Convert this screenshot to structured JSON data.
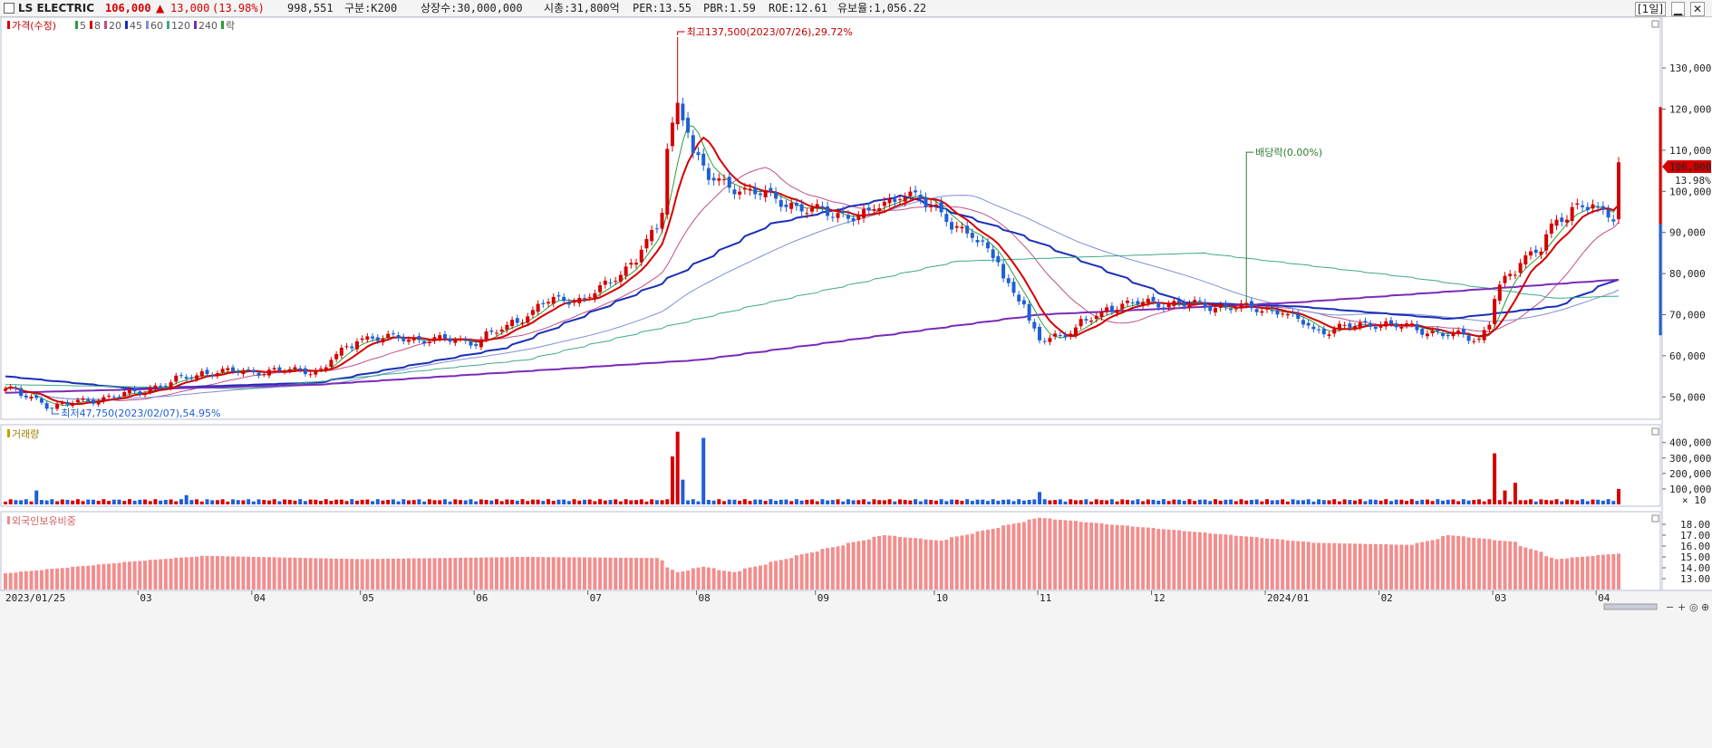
{
  "header": {
    "name": "LS ELECTRIC",
    "price": "106,000",
    "change_arrow": "▲",
    "change": "13,000",
    "change_pct": "(13.98%)",
    "volume": "998,551",
    "category": "구분:K200",
    "shares": "상장수:30,000,000",
    "market_cap": "시총:31,800억",
    "per": "PER:13.55",
    "pbr": "PBR:1.59",
    "roe": "ROE:12.61",
    "float_ratio": "유보율:1,056.22",
    "period_button": "[1일]"
  },
  "colors": {
    "up": "#d40000",
    "down": "#1f5fd4",
    "ma5": "#2e9e3a",
    "ma8": "#d40000",
    "ma20": "#c0508a",
    "ma45": "#1a2fb8",
    "ma60": "#7f8fd8",
    "ma120": "#3fa88a",
    "ma240": "#7a2bb8",
    "foreign": "#f28e8e"
  },
  "price_legend": [
    {
      "label": "가격(수정)",
      "color": "#d40000"
    },
    {
      "label": "5",
      "color": "#2e9e3a"
    },
    {
      "label": "8",
      "color": "#d40000"
    },
    {
      "label": "20",
      "color": "#c0508a"
    },
    {
      "label": "45",
      "color": "#1a2fb8"
    },
    {
      "label": "60",
      "color": "#7f8fd8"
    },
    {
      "label": "120",
      "color": "#3fa88a"
    },
    {
      "label": "240",
      "color": "#7a2bb8"
    },
    {
      "label": "락",
      "color": "#2e9e3a"
    }
  ],
  "annotations": {
    "high": "최고137,500(2023/07/26),29.72%",
    "low": "최저47,750(2023/02/07),54.95%",
    "dividend": "배당락(0.00%)"
  },
  "price_axis": {
    "ticks": [
      "130,000",
      "120,000",
      "110,000",
      "100,000",
      "90,000",
      "80,000",
      "70,000",
      "60,000",
      "50,000"
    ],
    "current_label": "106,000",
    "current_pct": "13.98%"
  },
  "volume_panel": {
    "title": "거래량",
    "ticks": [
      "400,000",
      "300,000",
      "200,000",
      "100,000"
    ],
    "unit": "× 10"
  },
  "foreign_panel": {
    "title": "외국인보유비중",
    "ticks": [
      "18.00",
      "17.00",
      "16.00",
      "15.00",
      "14.00",
      "13.00"
    ]
  },
  "x_axis": {
    "labels": [
      "2023/01/25",
      "03",
      "04",
      "05",
      "06",
      "07",
      "08",
      "09",
      "10",
      "11",
      "12",
      "2024/01",
      "02",
      "03",
      "04"
    ]
  },
  "chart_data": {
    "type": "candlestick",
    "x_start": "2023/01/25",
    "x_end": "2024/04/05",
    "y_range_price": [
      45000,
      137500
    ],
    "price_anchors": [
      {
        "date": "2023/01/25",
        "value": 52000
      },
      {
        "date": "2023/02/07",
        "value": 47750
      },
      {
        "date": "2023/03/01",
        "value": 51000
      },
      {
        "date": "2023/03/20",
        "value": 56000
      },
      {
        "date": "2023/04/20",
        "value": 56500
      },
      {
        "date": "2023/05/01",
        "value": 64500
      },
      {
        "date": "2023/05/20",
        "value": 64000
      },
      {
        "date": "2023/06/01",
        "value": 63500
      },
      {
        "date": "2023/06/10",
        "value": 67000
      },
      {
        "date": "2023/06/20",
        "value": 73000
      },
      {
        "date": "2023/07/01",
        "value": 74000
      },
      {
        "date": "2023/07/10",
        "value": 79000
      },
      {
        "date": "2023/07/15",
        "value": 85000
      },
      {
        "date": "2023/07/20",
        "value": 90000
      },
      {
        "date": "2023/07/26",
        "value": 121000
      },
      {
        "date": "2023/08/03",
        "value": 103000
      },
      {
        "date": "2023/08/15",
        "value": 100000
      },
      {
        "date": "2023/09/01",
        "value": 95000
      },
      {
        "date": "2023/09/15",
        "value": 94000
      },
      {
        "date": "2023/09/25",
        "value": 100000
      },
      {
        "date": "2023/10/05",
        "value": 95000
      },
      {
        "date": "2023/10/20",
        "value": 84000
      },
      {
        "date": "2023/11/01",
        "value": 64000
      },
      {
        "date": "2023/11/10",
        "value": 66000
      },
      {
        "date": "2023/11/20",
        "value": 72000
      },
      {
        "date": "2023/12/01",
        "value": 73000
      },
      {
        "date": "2023/12/20",
        "value": 72000
      },
      {
        "date": "2024/01/05",
        "value": 71000
      },
      {
        "date": "2024/01/15",
        "value": 66000
      },
      {
        "date": "2024/02/01",
        "value": 68000
      },
      {
        "date": "2024/02/28",
        "value": 64000
      },
      {
        "date": "2024/03/05",
        "value": 77000
      },
      {
        "date": "2024/03/20",
        "value": 92000
      },
      {
        "date": "2024/03/29",
        "value": 98000
      },
      {
        "date": "2024/04/04",
        "value": 93000
      },
      {
        "date": "2024/04/05",
        "value": 106000
      }
    ],
    "volume_spikes": [
      {
        "date": "2023/02/02",
        "value": 90000
      },
      {
        "date": "2023/03/15",
        "value": 60000
      },
      {
        "date": "2023/07/25",
        "value": 310000
      },
      {
        "date": "2023/07/26",
        "value": 470000
      },
      {
        "date": "2023/07/27",
        "value": 160000
      },
      {
        "date": "2023/08/02",
        "value": 430000
      },
      {
        "date": "2023/11/01",
        "value": 80000
      },
      {
        "date": "2024/03/04",
        "value": 330000
      },
      {
        "date": "2024/03/06",
        "value": 90000
      },
      {
        "date": "2024/03/08",
        "value": 140000
      },
      {
        "date": "2024/04/05",
        "value": 100000
      }
    ],
    "volume_range": [
      0,
      480000
    ],
    "foreign_anchors": [
      {
        "date": "2023/01/25",
        "value": 13.5
      },
      {
        "date": "2023/03/01",
        "value": 14.6
      },
      {
        "date": "2023/03/20",
        "value": 15.1
      },
      {
        "date": "2023/05/01",
        "value": 14.8
      },
      {
        "date": "2023/06/15",
        "value": 15.0
      },
      {
        "date": "2023/07/20",
        "value": 14.9
      },
      {
        "date": "2023/07/26",
        "value": 13.6
      },
      {
        "date": "2023/08/02",
        "value": 14.1
      },
      {
        "date": "2023/08/10",
        "value": 13.6
      },
      {
        "date": "2023/09/01",
        "value": 15.5
      },
      {
        "date": "2023/09/20",
        "value": 17.0
      },
      {
        "date": "2023/10/05",
        "value": 16.5
      },
      {
        "date": "2023/11/01",
        "value": 18.6
      },
      {
        "date": "2023/11/20",
        "value": 18.0
      },
      {
        "date": "2023/12/20",
        "value": 17.1
      },
      {
        "date": "2024/01/15",
        "value": 16.3
      },
      {
        "date": "2024/02/10",
        "value": 16.1
      },
      {
        "date": "2024/02/20",
        "value": 17.0
      },
      {
        "date": "2024/03/08",
        "value": 16.4
      },
      {
        "date": "2024/03/20",
        "value": 14.8
      },
      {
        "date": "2024/04/05",
        "value": 15.3
      }
    ],
    "foreign_range": [
      12.0,
      19.0
    ],
    "ma_series": [
      {
        "name": "45",
        "points": [
          {
            "date": "2023/01/25",
            "value": 55000
          },
          {
            "date": "2023/03/01",
            "value": 52000
          },
          {
            "date": "2023/04/20",
            "value": 53500
          },
          {
            "date": "2023/06/10",
            "value": 62000
          },
          {
            "date": "2023/07/20",
            "value": 77000
          },
          {
            "date": "2023/08/20",
            "value": 92000
          },
          {
            "date": "2023/09/25",
            "value": 99000
          },
          {
            "date": "2023/10/25",
            "value": 90000
          },
          {
            "date": "2023/12/10",
            "value": 73000
          },
          {
            "date": "2024/01/10",
            "value": 72000
          },
          {
            "date": "2024/02/20",
            "value": 69000
          },
          {
            "date": "2024/03/20",
            "value": 72000
          },
          {
            "date": "2024/04/05",
            "value": 78500
          }
        ]
      },
      {
        "name": "120",
        "points": [
          {
            "date": "2023/01/25",
            "value": 53000
          },
          {
            "date": "2023/04/01",
            "value": 52000
          },
          {
            "date": "2023/06/15",
            "value": 59000
          },
          {
            "date": "2023/08/15",
            "value": 72000
          },
          {
            "date": "2023/10/10",
            "value": 83000
          },
          {
            "date": "2023/12/15",
            "value": 85000
          },
          {
            "date": "2024/02/10",
            "value": 79000
          },
          {
            "date": "2024/03/20",
            "value": 74000
          },
          {
            "date": "2024/04/05",
            "value": 74500
          }
        ]
      },
      {
        "name": "240",
        "points": [
          {
            "date": "2023/01/25",
            "value": 51000
          },
          {
            "date": "2023/04/20",
            "value": 53000
          },
          {
            "date": "2023/08/01",
            "value": 59000
          },
          {
            "date": "2023/11/01",
            "value": 70000
          },
          {
            "date": "2024/01/10",
            "value": 73000
          },
          {
            "date": "2024/04/05",
            "value": 78500
          }
        ]
      }
    ]
  }
}
